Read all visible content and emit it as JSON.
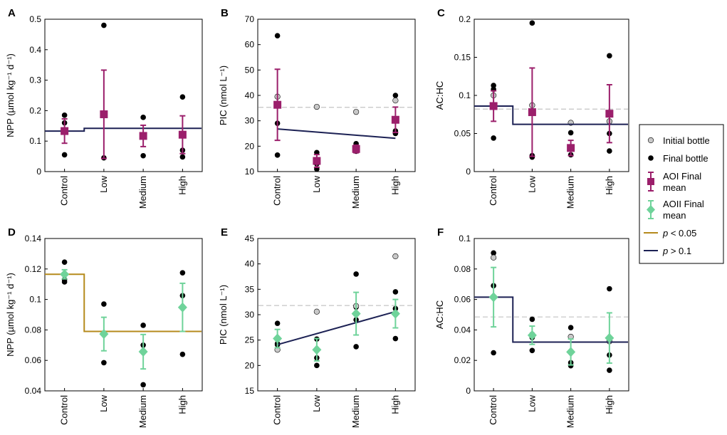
{
  "colors": {
    "aoi": "#9b1f6b",
    "aoii": "#6fd39a",
    "sig": "#b58a1c",
    "nonsig": "#1c2154",
    "initial_fill": "#c8c8c8",
    "final_fill": "#000000",
    "dash": "#c4c4c4"
  },
  "legend": {
    "initial": "Initial bottle",
    "final": "Final bottle",
    "aoi_line1": "AOI Final",
    "aoi_line2": "mean",
    "aoii_line1": "AOII Final",
    "aoii_line2": "mean",
    "p_sig_p": "p",
    "p_sig_rest": " < 0.05",
    "p_nonsig_p": "p",
    "p_nonsig_rest": " > 0.1"
  },
  "chart_data": [
    {
      "panel": "A",
      "type": "scatter",
      "categories": [
        "Control",
        "Low",
        "Medium",
        "High"
      ],
      "ylabel": "NPP (µmol kg⁻¹ d⁻¹)",
      "ylim": [
        0,
        0.5
      ],
      "yticks": [
        0,
        0.1,
        0.2,
        0.3,
        0.4,
        0.5
      ],
      "ytick_labels": [
        "0",
        "0.1",
        "0.2",
        "0.3",
        "0.4",
        "0.5"
      ],
      "final_points": [
        [
          1,
          0.185
        ],
        [
          1,
          0.16
        ],
        [
          1,
          0.055
        ],
        [
          2,
          0.48
        ],
        [
          2,
          0.045
        ],
        [
          3,
          0.178
        ],
        [
          3,
          0.052
        ],
        [
          4,
          0.245
        ],
        [
          4,
          0.07
        ],
        [
          4,
          0.048
        ]
      ],
      "initial_points": [],
      "mean_series": "AOI",
      "means": [
        0.133,
        0.188,
        0.117,
        0.121
      ],
      "errors": [
        0.04,
        0.145,
        0.035,
        0.062
      ],
      "fit": {
        "type": "step",
        "significance": "p > 0.1",
        "x": [
          0.5,
          1.5,
          4.5
        ],
        "y": [
          0.133,
          0.142,
          0.142
        ]
      },
      "reference_line": null
    },
    {
      "panel": "B",
      "type": "scatter",
      "categories": [
        "Control",
        "Low",
        "Medium",
        "High"
      ],
      "ylabel": "PIC (nmol L⁻¹)",
      "ylim": [
        10,
        70
      ],
      "yticks": [
        10,
        20,
        30,
        40,
        50,
        60,
        70
      ],
      "ytick_labels": [
        "10",
        "20",
        "30",
        "40",
        "50",
        "60",
        "70"
      ],
      "final_points": [
        [
          1,
          63.5
        ],
        [
          1,
          29
        ],
        [
          1,
          16.5
        ],
        [
          2,
          17.5
        ],
        [
          2,
          13
        ],
        [
          2,
          11
        ],
        [
          3,
          21
        ],
        [
          3,
          18
        ],
        [
          4,
          40
        ],
        [
          4,
          26
        ],
        [
          4,
          25
        ]
      ],
      "initial_points": [
        [
          1,
          39.5
        ],
        [
          2,
          35.5
        ],
        [
          3,
          33.5
        ],
        [
          4,
          38
        ]
      ],
      "mean_series": "AOI",
      "means": [
        36.3,
        14.2,
        18.9,
        30.4
      ],
      "errors": [
        14.0,
        2.5,
        1.5,
        5.0
      ],
      "fit": {
        "type": "linear",
        "significance": "p > 0.1",
        "x": [
          1,
          4
        ],
        "y": [
          26.8,
          23.1
        ]
      },
      "reference_line": 35.3
    },
    {
      "panel": "C",
      "type": "scatter",
      "categories": [
        "Control",
        "Low",
        "Medium",
        "High"
      ],
      "ylabel": "AC:HC",
      "ylim": [
        0,
        0.2
      ],
      "yticks": [
        0,
        0.05,
        0.1,
        0.15,
        0.2
      ],
      "ytick_labels": [
        "0",
        "0.05",
        "0.1",
        "0.15",
        "0.2"
      ],
      "final_points": [
        [
          1,
          0.113
        ],
        [
          1,
          0.108
        ],
        [
          1,
          0.044
        ],
        [
          2,
          0.195
        ],
        [
          2,
          0.021
        ],
        [
          2,
          0.019
        ],
        [
          3,
          0.051
        ],
        [
          3,
          0.022
        ],
        [
          4,
          0.152
        ],
        [
          4,
          0.05
        ],
        [
          4,
          0.027
        ]
      ],
      "initial_points": [
        [
          1,
          0.1
        ],
        [
          2,
          0.087
        ],
        [
          3,
          0.064
        ],
        [
          4,
          0.066
        ]
      ],
      "mean_series": "AOI",
      "means": [
        0.086,
        0.078,
        0.031,
        0.076
      ],
      "errors": [
        0.02,
        0.058,
        0.01,
        0.038
      ],
      "fit": {
        "type": "step",
        "significance": "p > 0.1",
        "x": [
          0.5,
          1.5,
          4.5
        ],
        "y": [
          0.086,
          0.062,
          0.062
        ]
      },
      "reference_line": 0.082
    },
    {
      "panel": "D",
      "type": "scatter",
      "categories": [
        "Control",
        "Low",
        "Medium",
        "High"
      ],
      "ylabel": "NPP (µmol kg⁻¹ d⁻¹)",
      "ylim": [
        0.04,
        0.14
      ],
      "yticks": [
        0.04,
        0.06,
        0.08,
        0.1,
        0.12,
        0.14
      ],
      "ytick_labels": [
        "0.04",
        "0.06",
        "0.08",
        "0.1",
        "0.12",
        "0.14"
      ],
      "final_points": [
        [
          1,
          0.1245
        ],
        [
          1,
          0.1115
        ],
        [
          1,
          0.113
        ],
        [
          2,
          0.097
        ],
        [
          2,
          0.0585
        ],
        [
          3,
          0.083
        ],
        [
          3,
          0.07
        ],
        [
          3,
          0.044
        ],
        [
          4,
          0.1175
        ],
        [
          4,
          0.1025
        ],
        [
          4,
          0.064
        ]
      ],
      "initial_points": [],
      "mean_series": "AOII",
      "means": [
        0.1165,
        0.0773,
        0.0657,
        0.0948
      ],
      "errors": [
        0.003,
        0.011,
        0.0113,
        0.0158
      ],
      "fit": {
        "type": "step",
        "significance": "p < 0.05",
        "x": [
          0.5,
          1.5,
          4.5
        ],
        "y": [
          0.1165,
          0.079,
          0.079
        ]
      },
      "reference_line": null
    },
    {
      "panel": "E",
      "type": "scatter",
      "categories": [
        "Control",
        "Low",
        "Medium",
        "High"
      ],
      "ylabel": "PIC (nmol L⁻¹)",
      "ylim": [
        15,
        45
      ],
      "yticks": [
        15,
        20,
        25,
        30,
        35,
        40,
        45
      ],
      "ytick_labels": [
        "15",
        "20",
        "25",
        "30",
        "35",
        "40",
        "45"
      ],
      "final_points": [
        [
          1,
          28.3
        ],
        [
          1,
          24.3
        ],
        [
          1,
          24.1
        ],
        [
          2,
          25.2
        ],
        [
          2,
          21.5
        ],
        [
          2,
          20
        ],
        [
          3,
          38
        ],
        [
          3,
          31.5
        ],
        [
          3,
          29
        ],
        [
          3,
          23.7
        ],
        [
          4,
          34.5
        ],
        [
          4,
          31.2
        ],
        [
          4,
          25.3
        ]
      ],
      "initial_points": [
        [
          1,
          23.1
        ],
        [
          2,
          30.6
        ],
        [
          3,
          31.7
        ],
        [
          4,
          41.5
        ]
      ],
      "mean_series": "AOII",
      "means": [
        25.3,
        23.1,
        30.2,
        30.2
      ],
      "errors": [
        1.8,
        2.2,
        4.2,
        2.8
      ],
      "fit": {
        "type": "linear",
        "significance": "p > 0.1",
        "x": [
          1,
          4
        ],
        "y": [
          24.1,
          30.6
        ]
      },
      "reference_line": 31.8
    },
    {
      "panel": "F",
      "type": "scatter",
      "categories": [
        "Control",
        "Low",
        "Medium",
        "High"
      ],
      "ylabel": "AC:HC",
      "ylim": [
        0,
        0.1
      ],
      "yticks": [
        0,
        0.02,
        0.04,
        0.06,
        0.08,
        0.1
      ],
      "ytick_labels": [
        "0",
        "0.02",
        "0.04",
        "0.06",
        "0.08",
        "0.1"
      ],
      "final_points": [
        [
          1,
          0.0905
        ],
        [
          1,
          0.069
        ],
        [
          1,
          0.025
        ],
        [
          2,
          0.047
        ],
        [
          2,
          0.035
        ],
        [
          2,
          0.0265
        ],
        [
          3,
          0.0415
        ],
        [
          3,
          0.0185
        ],
        [
          3,
          0.0165
        ],
        [
          4,
          0.067
        ],
        [
          4,
          0.0235
        ],
        [
          4,
          0.0135
        ]
      ],
      "initial_points": [
        [
          1,
          0.0875
        ],
        [
          2,
          0.037
        ],
        [
          3,
          0.0355
        ],
        [
          4,
          0.0325
        ]
      ],
      "mean_series": "AOII",
      "means": [
        0.0615,
        0.0365,
        0.0255,
        0.0347
      ],
      "errors": [
        0.0195,
        0.006,
        0.0085,
        0.0165
      ],
      "fit": {
        "type": "step",
        "significance": "p > 0.1",
        "x": [
          0.5,
          1.5,
          4.5
        ],
        "y": [
          0.0615,
          0.032,
          0.032
        ]
      },
      "reference_line": 0.0485
    }
  ]
}
